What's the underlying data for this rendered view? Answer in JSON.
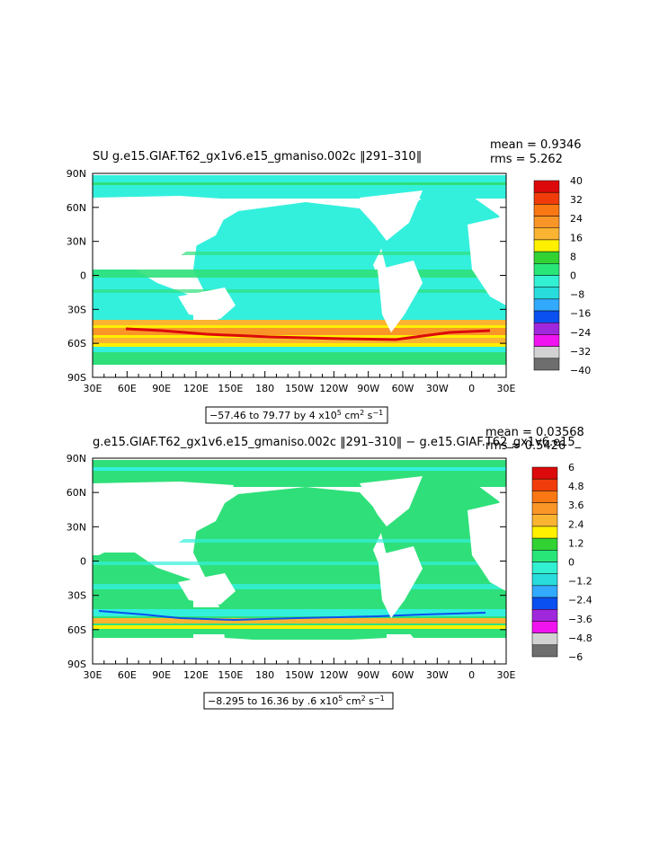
{
  "panels": [
    {
      "title": "SU g.e15.GIAF.T62_gx1v6.e15_gmaniso.002c ‖291–310‖",
      "stats": {
        "mean": "mean = 0.9346",
        "rms": "rms = 5.262"
      },
      "range_text": "−57.46 to 79.77 by 4 x10",
      "units_exp": "5",
      "units_rest": " cm",
      "units_exp2": "2",
      "units_s": " s",
      "units_exp3": "−1",
      "colorbar": {
        "colors": [
          "#dc0a0a",
          "#f03c0a",
          "#fa7814",
          "#fa9628",
          "#fab432",
          "#fff000",
          "#32d232",
          "#28e678",
          "#32f0d2",
          "#28dcdc",
          "#32aaff",
          "#0a50f0",
          "#a028dc",
          "#f014f0",
          "#d2d2d2",
          "#6e6e6e"
        ],
        "labels": [
          "40",
          "32",
          "24",
          "16",
          "8",
          "0",
          "−8",
          "−16",
          "−24",
          "−32",
          "−40"
        ]
      }
    },
    {
      "title": "g.e15.GIAF.T62_gx1v6.e15_gmaniso.002c ‖291–310‖ − g.e15.GIAF.T62_gx1v6.e15_",
      "stats": {
        "mean": "mean = 0.03568",
        "rms": "rms = 0.5426"
      },
      "range_text": "−8.295 to 16.36 by .6 x10",
      "units_exp": "5",
      "units_rest": " cm",
      "units_exp2": "2",
      "units_s": " s",
      "units_exp3": "−1",
      "colorbar": {
        "colors": [
          "#dc0a0a",
          "#f03c0a",
          "#fa7814",
          "#fa9628",
          "#fab432",
          "#fff000",
          "#32d232",
          "#28e678",
          "#32f0d2",
          "#28dcdc",
          "#32aaff",
          "#0a50f0",
          "#a028dc",
          "#f014f0",
          "#d2d2d2",
          "#6e6e6e"
        ],
        "labels": [
          "6",
          "4.8",
          "3.6",
          "2.4",
          "1.2",
          "0",
          "−1.2",
          "−2.4",
          "−3.6",
          "−4.8",
          "−6"
        ]
      }
    }
  ],
  "axes": {
    "lat_labels": [
      "90N",
      "60N",
      "30N",
      "0",
      "30S",
      "60S",
      "90S"
    ],
    "lon_labels": [
      "30E",
      "60E",
      "90E",
      "120E",
      "150E",
      "180",
      "150W",
      "120W",
      "90W",
      "60W",
      "30W",
      "0",
      "30E"
    ]
  },
  "colors": {
    "ocean": "#33f0dd",
    "band_green": "#2fe07a",
    "land": "#ffffff"
  }
}
